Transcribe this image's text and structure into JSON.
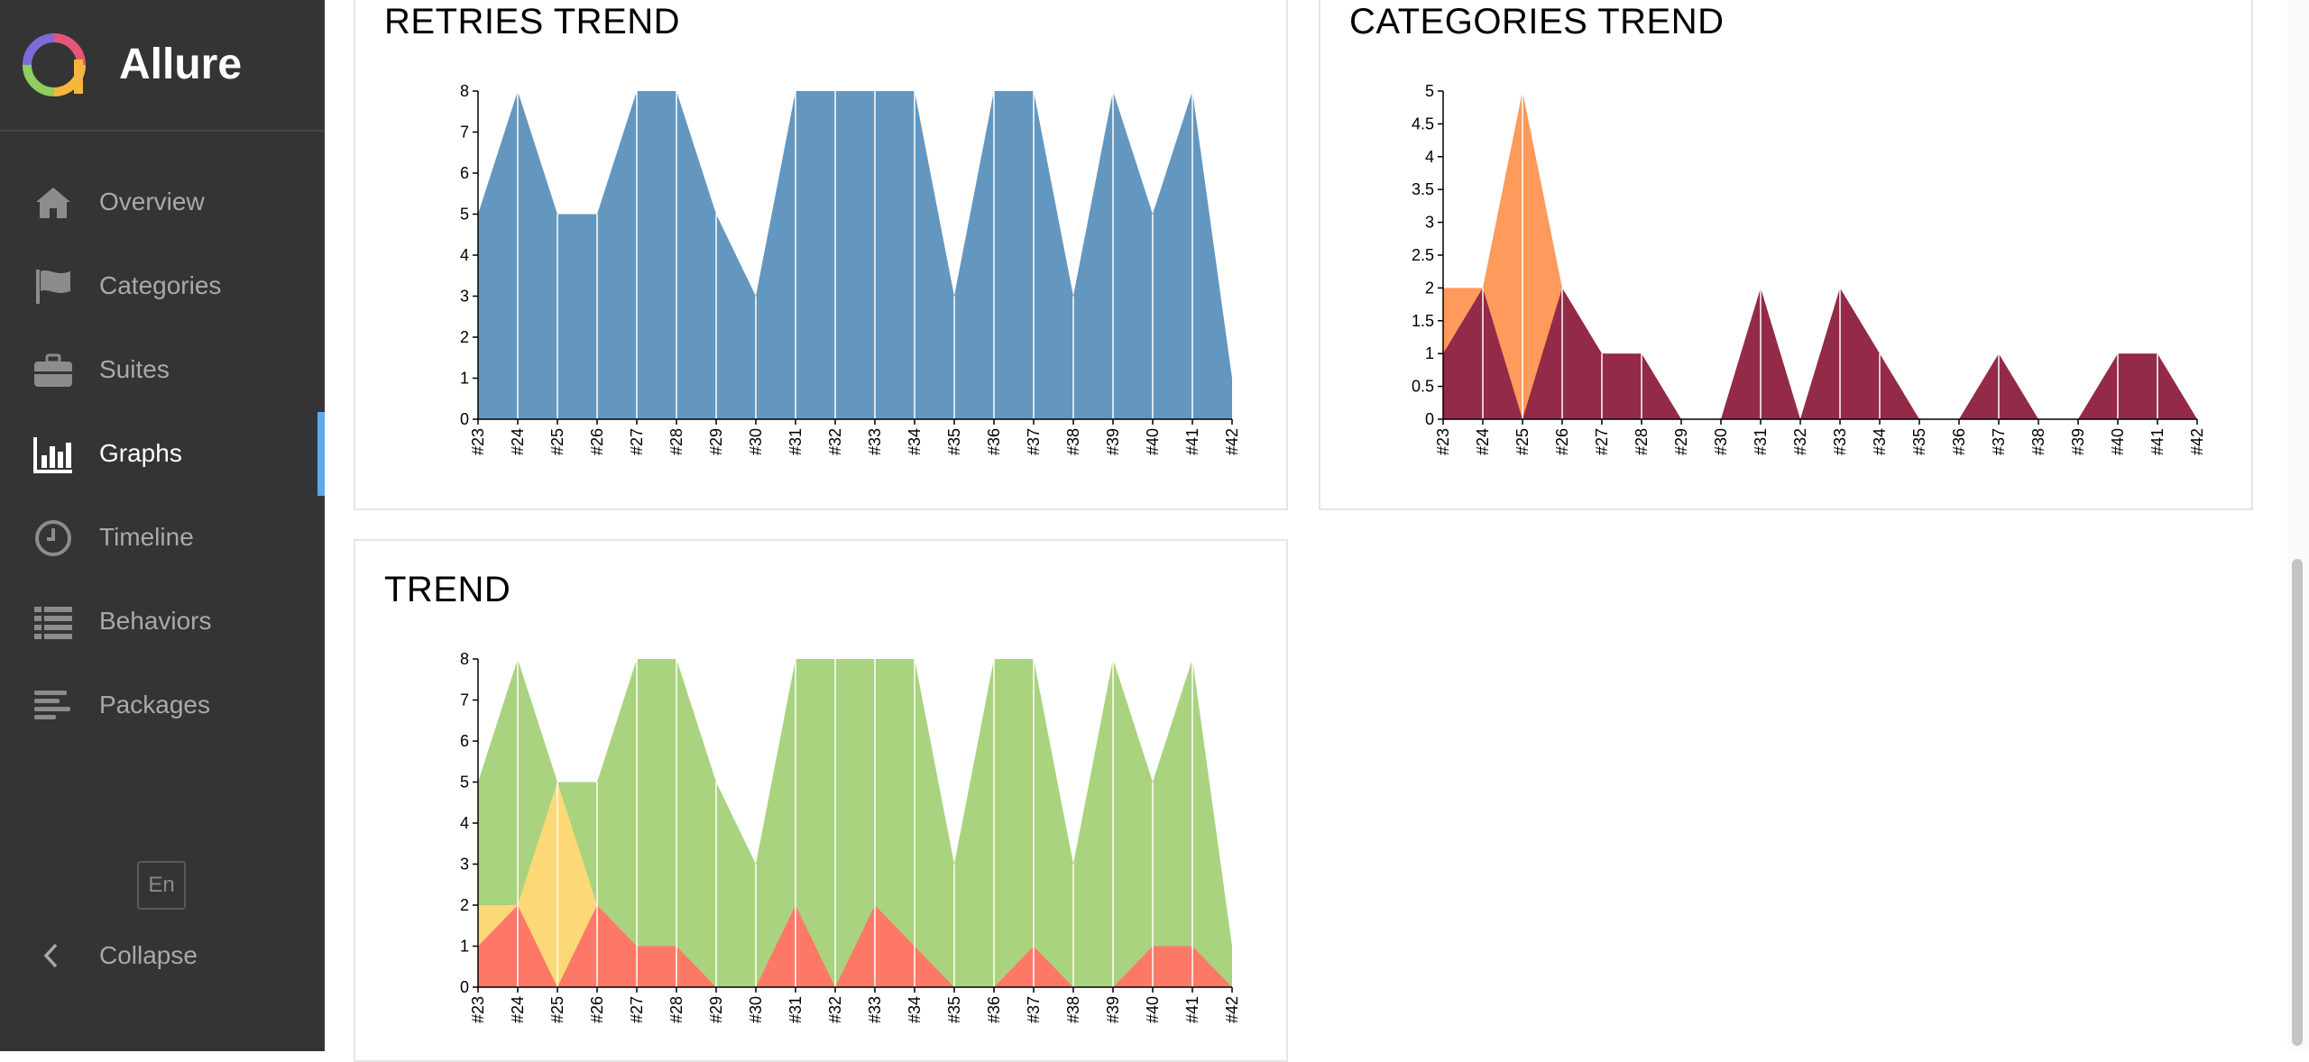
{
  "app": {
    "name": "Allure"
  },
  "sidebar": {
    "items": [
      {
        "label": "Overview",
        "icon": "home-icon",
        "active": false
      },
      {
        "label": "Categories",
        "icon": "flag-icon",
        "active": false
      },
      {
        "label": "Suites",
        "icon": "briefcase-icon",
        "active": false
      },
      {
        "label": "Graphs",
        "icon": "bar-chart-icon",
        "active": true
      },
      {
        "label": "Timeline",
        "icon": "clock-icon",
        "active": false
      },
      {
        "label": "Behaviors",
        "icon": "list-icon",
        "active": false
      },
      {
        "label": "Packages",
        "icon": "align-left-icon",
        "active": false
      }
    ],
    "language": "En",
    "collapse_label": "Collapse"
  },
  "colors": {
    "sidebar_bg": "#343434",
    "active_marker": "#5fa8f0",
    "retries": "#6497bf",
    "passed": "#a9d37e",
    "broken": "#fdd877",
    "failed": "#fd7867",
    "category_a": "#fd9a5c",
    "category_b": "#922a48"
  },
  "cards": {
    "retries": {
      "title": "RETRIES TREND"
    },
    "categories": {
      "title": "CATEGORIES TREND"
    },
    "trend": {
      "title": "TREND"
    }
  },
  "chart_data": [
    {
      "type": "area",
      "title": "RETRIES TREND",
      "x": [
        "#23",
        "#24",
        "#25",
        "#26",
        "#27",
        "#28",
        "#29",
        "#30",
        "#31",
        "#32",
        "#33",
        "#34",
        "#35",
        "#36",
        "#37",
        "#38",
        "#39",
        "#40",
        "#41",
        "#42"
      ],
      "ylim": [
        0,
        8
      ],
      "yticks": [
        0,
        1,
        2,
        3,
        4,
        5,
        6,
        7,
        8
      ],
      "series": [
        {
          "color": "#6497bf",
          "values": [
            5,
            8,
            5,
            5,
            8,
            8,
            5,
            3,
            8,
            8,
            8,
            8,
            3,
            8,
            8,
            3,
            8,
            5,
            8,
            1
          ]
        }
      ]
    },
    {
      "type": "area",
      "stacked": true,
      "title": "CATEGORIES TREND",
      "x": [
        "#23",
        "#24",
        "#25",
        "#26",
        "#27",
        "#28",
        "#29",
        "#30",
        "#31",
        "#32",
        "#33",
        "#34",
        "#35",
        "#36",
        "#37",
        "#38",
        "#39",
        "#40",
        "#41",
        "#42"
      ],
      "ylim": [
        0,
        5
      ],
      "yticks": [
        0,
        0.5,
        1,
        1.5,
        2,
        2.5,
        3,
        3.5,
        4,
        4.5,
        5
      ],
      "series": [
        {
          "color": "#922a48",
          "values": [
            1,
            2,
            0,
            2,
            1,
            1,
            0,
            0,
            2,
            0,
            2,
            1,
            0,
            0,
            1,
            0,
            0,
            1,
            1,
            0
          ]
        },
        {
          "color": "#fd9a5c",
          "values": [
            1,
            0,
            5,
            0,
            0,
            0,
            0,
            0,
            0,
            0,
            0,
            0,
            0,
            0,
            0,
            0,
            0,
            0,
            0,
            0
          ]
        }
      ]
    },
    {
      "type": "area",
      "stacked": true,
      "title": "TREND",
      "x": [
        "#23",
        "#24",
        "#25",
        "#26",
        "#27",
        "#28",
        "#29",
        "#30",
        "#31",
        "#32",
        "#33",
        "#34",
        "#35",
        "#36",
        "#37",
        "#38",
        "#39",
        "#40",
        "#41",
        "#42"
      ],
      "ylim": [
        0,
        8
      ],
      "yticks": [
        0,
        1,
        2,
        3,
        4,
        5,
        6,
        7,
        8
      ],
      "series": [
        {
          "color": "#fd7867",
          "values": [
            1,
            2,
            0,
            2,
            1,
            1,
            0,
            0,
            2,
            0,
            2,
            1,
            0,
            0,
            1,
            0,
            0,
            1,
            1,
            0
          ]
        },
        {
          "color": "#fdd877",
          "values": [
            1,
            0,
            5,
            0,
            0,
            0,
            0,
            0,
            0,
            0,
            0,
            0,
            0,
            0,
            0,
            0,
            0,
            0,
            0,
            0
          ]
        },
        {
          "color": "#a9d37e",
          "values": [
            3,
            6,
            0,
            3,
            7,
            7,
            5,
            3,
            6,
            8,
            6,
            7,
            3,
            8,
            7,
            3,
            8,
            4,
            7,
            1
          ]
        }
      ]
    }
  ]
}
